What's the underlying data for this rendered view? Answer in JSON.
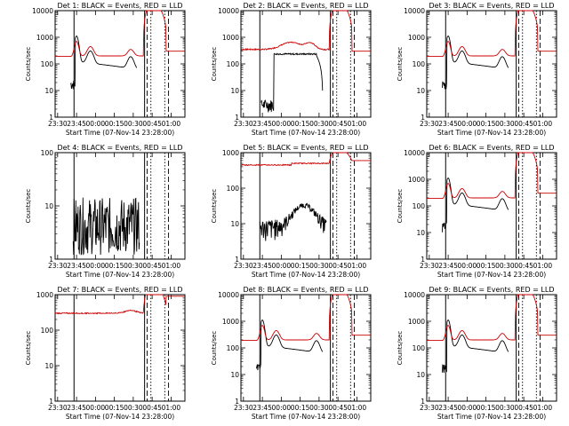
{
  "chart_data": [
    {
      "type": "line",
      "title": "Det 1: BLACK = Events, RED = LLD",
      "ylabel": "Counts/sec",
      "xlabel": "Start Time (07-Nov-14 23:28:00)",
      "y_scale": "log",
      "y_ticks": [
        "1",
        "10",
        "100",
        "1000",
        "10000"
      ],
      "x_ticks": [
        "23:30",
        "23:45",
        "00:00",
        "00:15",
        "00:30",
        "00:45",
        "01:00"
      ],
      "x_range": [
        "23:28",
        "01:11"
      ],
      "ylim": [
        1,
        10000
      ],
      "series": [
        {
          "color": "#cc0000"
        },
        {
          "color": "#000000"
        }
      ],
      "profile": "a"
    },
    {
      "type": "line",
      "title": "Det 2: BLACK = Events, RED = LLD",
      "ylabel": "Counts/sec",
      "xlabel": "Start Time (07-Nov-14 23:28:00)",
      "y_scale": "log",
      "y_ticks": [
        "1",
        "10",
        "100",
        "1000",
        "10000"
      ],
      "x_ticks": [
        "23:30",
        "23:45",
        "00:00",
        "00:15",
        "00:30",
        "00:45",
        "01:00"
      ],
      "x_range": [
        "23:28",
        "01:11"
      ],
      "ylim": [
        1,
        10000
      ],
      "series": [
        {
          "color": "#cc0000"
        },
        {
          "color": "#000000"
        }
      ],
      "profile": "b"
    },
    {
      "type": "line",
      "title": "Det 3: BLACK = Events, RED = LLD",
      "ylabel": "Counts/sec",
      "xlabel": "Start Time (07-Nov-14 23:28:00)",
      "y_scale": "log",
      "y_ticks": [
        "1",
        "10",
        "100",
        "1000",
        "10000"
      ],
      "x_ticks": [
        "23:30",
        "23:45",
        "00:00",
        "00:15",
        "00:30",
        "00:45",
        "01:00"
      ],
      "x_range": [
        "23:28",
        "01:11"
      ],
      "ylim": [
        1,
        10000
      ],
      "series": [
        {
          "color": "#cc0000"
        },
        {
          "color": "#000000"
        }
      ],
      "profile": "a"
    },
    {
      "type": "line",
      "title": "Det 4: BLACK = Events, RED = LLD",
      "ylabel": "Counts/sec",
      "xlabel": "Start Time (07-Nov-14 23:28:00)",
      "y_scale": "log",
      "y_ticks": [
        "1",
        "10",
        "100"
      ],
      "x_ticks": [
        "23:30",
        "23:45",
        "00:00",
        "00:15",
        "00:30",
        "00:45",
        "01:00"
      ],
      "x_range": [
        "23:28",
        "01:11"
      ],
      "ylim": [
        1,
        100
      ],
      "series": [
        {
          "color": "#cc0000"
        },
        {
          "color": "#000000"
        }
      ],
      "profile": "c"
    },
    {
      "type": "line",
      "title": "Det 5: BLACK = Events, RED = LLD",
      "ylabel": "Counts/sec",
      "xlabel": "Start Time (07-Nov-14 23:28:00)",
      "y_scale": "log",
      "y_ticks": [
        "1",
        "10",
        "100",
        "1000"
      ],
      "x_ticks": [
        "23:30",
        "23:45",
        "00:00",
        "00:15",
        "00:30",
        "00:45",
        "01:00"
      ],
      "x_range": [
        "23:28",
        "01:11"
      ],
      "ylim": [
        1,
        1000
      ],
      "series": [
        {
          "color": "#cc0000"
        },
        {
          "color": "#000000"
        }
      ],
      "profile": "d"
    },
    {
      "type": "line",
      "title": "Det 6: BLACK = Events, RED = LLD",
      "ylabel": "Counts/sec",
      "xlabel": "Start Time (07-Nov-14 23:28:00)",
      "y_scale": "log",
      "y_ticks": [
        "1",
        "10",
        "100",
        "1000",
        "10000"
      ],
      "x_ticks": [
        "23:30",
        "23:45",
        "00:00",
        "00:15",
        "00:30",
        "00:45",
        "01:00"
      ],
      "x_range": [
        "23:28",
        "01:11"
      ],
      "ylim": [
        1,
        10000
      ],
      "series": [
        {
          "color": "#cc0000"
        },
        {
          "color": "#000000"
        }
      ],
      "profile": "a"
    },
    {
      "type": "line",
      "title": "Det 7: BLACK = Events, RED = LLD",
      "ylabel": "Counts/sec",
      "xlabel": "Start Time (07-Nov-14 23:28:00)",
      "y_scale": "log",
      "y_ticks": [
        "1",
        "10",
        "100",
        "1000"
      ],
      "x_ticks": [
        "23:30",
        "23:45",
        "00:00",
        "00:15",
        "00:30",
        "00:45",
        "01:00"
      ],
      "x_range": [
        "23:28",
        "01:11"
      ],
      "ylim": [
        1,
        1000
      ],
      "series": [
        {
          "color": "#cc0000"
        },
        {
          "color": "#000000"
        }
      ],
      "profile": "e"
    },
    {
      "type": "line",
      "title": "Det 8: BLACK = Events, RED = LLD",
      "ylabel": "Counts/sec",
      "xlabel": "Start Time (07-Nov-14 23:28:00)",
      "y_scale": "log",
      "y_ticks": [
        "1",
        "10",
        "100",
        "1000",
        "10000"
      ],
      "x_ticks": [
        "23:30",
        "23:45",
        "00:00",
        "00:15",
        "00:30",
        "00:45",
        "01:00"
      ],
      "x_range": [
        "23:28",
        "01:11"
      ],
      "ylim": [
        1,
        10000
      ],
      "series": [
        {
          "color": "#cc0000"
        },
        {
          "color": "#000000"
        }
      ],
      "profile": "a"
    },
    {
      "type": "line",
      "title": "Det 9: BLACK = Events, RED = LLD",
      "ylabel": "Counts/sec",
      "xlabel": "Start Time (07-Nov-14 23:28:00)",
      "y_scale": "log",
      "y_ticks": [
        "1",
        "10",
        "100",
        "1000",
        "10000"
      ],
      "x_ticks": [
        "23:30",
        "23:45",
        "00:00",
        "00:15",
        "00:30",
        "00:45",
        "01:00"
      ],
      "x_range": [
        "23:28",
        "01:11"
      ],
      "ylim": [
        1,
        10000
      ],
      "series": [
        {
          "color": "#cc0000"
        },
        {
          "color": "#000000"
        }
      ],
      "profile": "a"
    }
  ]
}
